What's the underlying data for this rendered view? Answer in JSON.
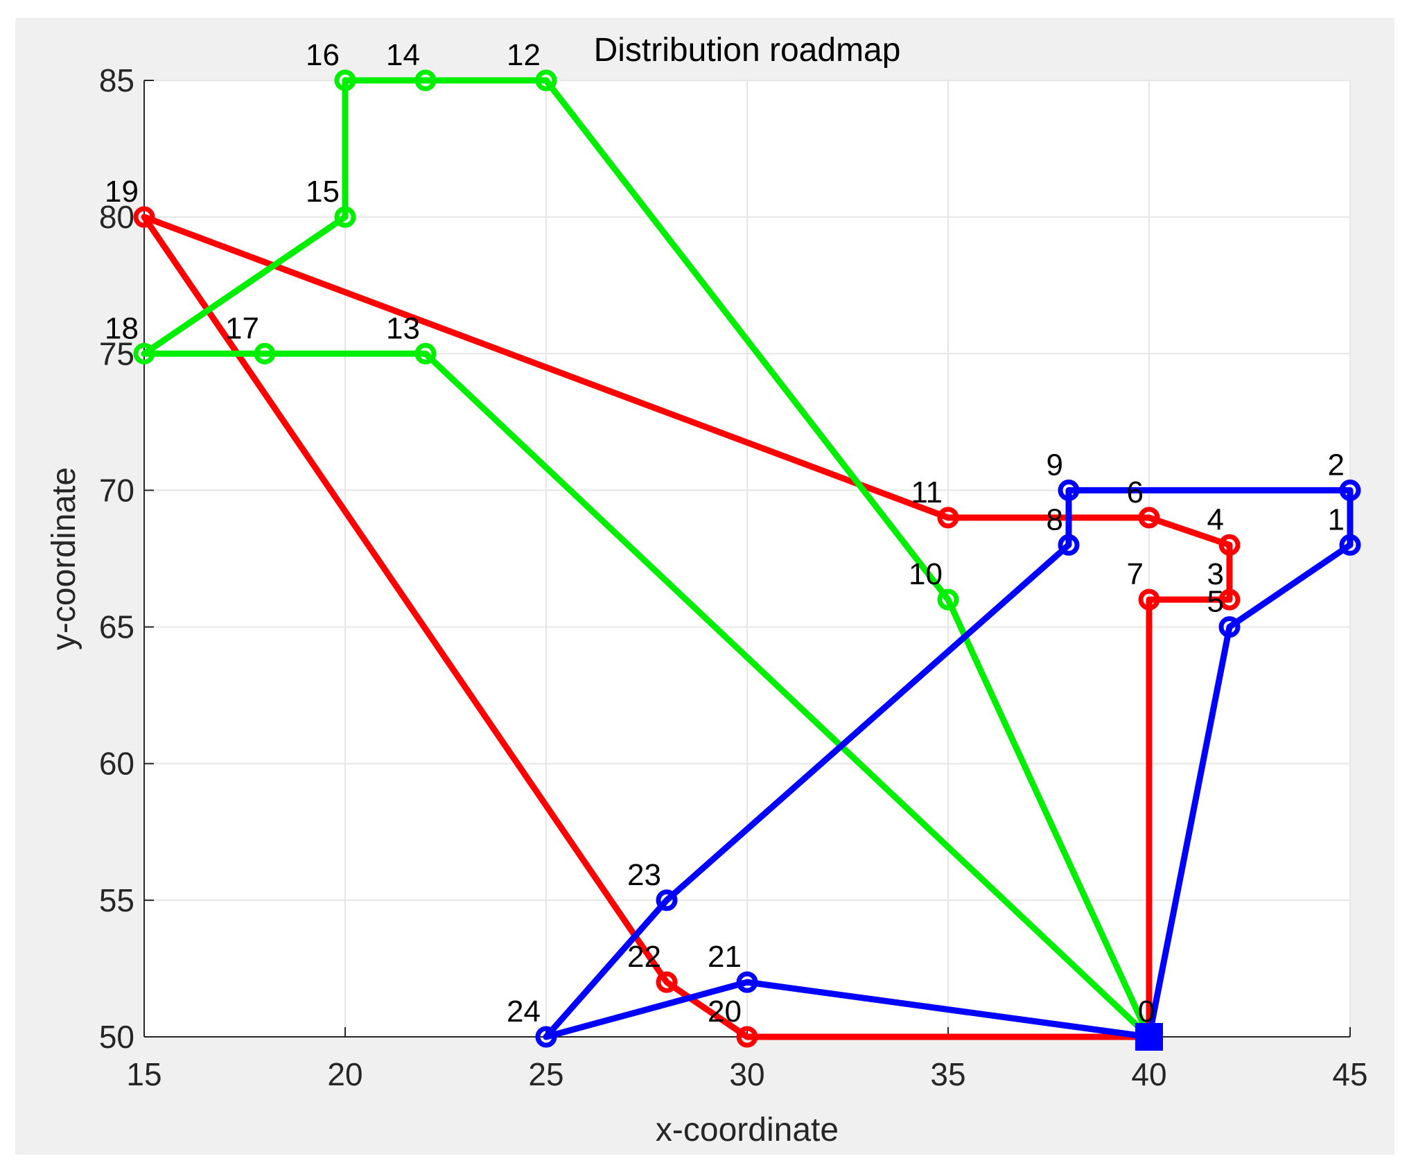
{
  "chart_data": {
    "type": "line",
    "title": "Distribution roadmap",
    "xlabel": "x-coordinate",
    "ylabel": "y-coordinate",
    "xlim": [
      15,
      45
    ],
    "ylim": [
      50,
      85
    ],
    "xticks": [
      15,
      20,
      25,
      30,
      35,
      40,
      45
    ],
    "yticks": [
      50,
      55,
      60,
      65,
      70,
      75,
      80,
      85
    ],
    "grid": true,
    "depot": {
      "label": "0",
      "x": 40,
      "y": 50,
      "color": "#0000ff"
    },
    "points": [
      {
        "label": "1",
        "x": 45,
        "y": 68
      },
      {
        "label": "2",
        "x": 45,
        "y": 70
      },
      {
        "label": "3",
        "x": 42,
        "y": 66
      },
      {
        "label": "4",
        "x": 42,
        "y": 68
      },
      {
        "label": "5",
        "x": 42,
        "y": 65
      },
      {
        "label": "6",
        "x": 40,
        "y": 69
      },
      {
        "label": "7",
        "x": 40,
        "y": 66
      },
      {
        "label": "8",
        "x": 38,
        "y": 68
      },
      {
        "label": "9",
        "x": 38,
        "y": 70
      },
      {
        "label": "10",
        "x": 35,
        "y": 66
      },
      {
        "label": "11",
        "x": 35,
        "y": 69
      },
      {
        "label": "12",
        "x": 25,
        "y": 85
      },
      {
        "label": "13",
        "x": 22,
        "y": 75
      },
      {
        "label": "14",
        "x": 22,
        "y": 85
      },
      {
        "label": "15",
        "x": 20,
        "y": 80
      },
      {
        "label": "16",
        "x": 20,
        "y": 85
      },
      {
        "label": "17",
        "x": 18,
        "y": 75
      },
      {
        "label": "18",
        "x": 15,
        "y": 75
      },
      {
        "label": "19",
        "x": 15,
        "y": 80
      },
      {
        "label": "20",
        "x": 30,
        "y": 50
      },
      {
        "label": "21",
        "x": 30,
        "y": 52
      },
      {
        "label": "22",
        "x": 28,
        "y": 52
      },
      {
        "label": "23",
        "x": 28,
        "y": 55
      },
      {
        "label": "24",
        "x": 25,
        "y": 50
      }
    ],
    "series": [
      {
        "color": "#ff0000",
        "route": [
          "0",
          "7",
          "3",
          "4",
          "6",
          "11",
          "19",
          "22",
          "20",
          "0"
        ]
      },
      {
        "color": "#00ee00",
        "route": [
          "0",
          "13",
          "17",
          "18",
          "15",
          "16",
          "14",
          "12",
          "10",
          "0"
        ]
      },
      {
        "color": "#0000ff",
        "route": [
          "0",
          "5",
          "1",
          "2",
          "9",
          "8",
          "23",
          "24",
          "21",
          "0"
        ]
      }
    ]
  }
}
